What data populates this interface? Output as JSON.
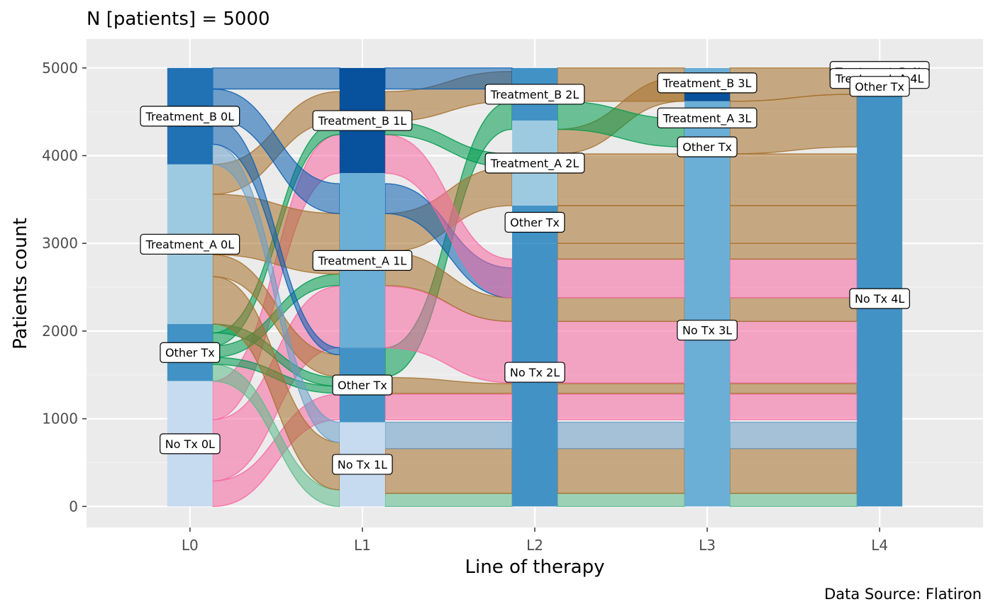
{
  "chart_data": {
    "type": "sankey",
    "title": "N [patients] = 5000",
    "caption": "Data Source: Flatiron",
    "xlabel": "Line of therapy",
    "ylabel": "Patients count",
    "x_categories": [
      "L0",
      "L1",
      "L2",
      "L3",
      "L4"
    ],
    "y_ticks": [
      0,
      1000,
      2000,
      3000,
      4000,
      5000
    ],
    "ylim": [
      -240,
      5330
    ],
    "grid": true,
    "colors": {
      "panel_bg": "#ebebeb",
      "grid_major": "#ffffff",
      "grid_minor": "#f4f4f4",
      "no_tx": "#c6dbef",
      "other_tx": "#4292c6",
      "treatment_a": "#9ecae1",
      "treatment_b": "#2171b5",
      "l1_treatment_a": "#6baed6",
      "l1_treatment_b": "#08519c",
      "l2_all": "#4292c6",
      "l3_all": "#6baed6",
      "l4_all": "#4292c6",
      "flow_no_tx": "#f768a1",
      "flow_other": "#009a4e",
      "flow_treatment_a": "#a6712b",
      "flow_treatment_b": "#0b5fb0",
      "flow_soft_green": "#5cbb8a",
      "flow_soft_blue": "#6a9ec7"
    },
    "nodes": [
      {
        "line": "L0",
        "name": "Treatment_B",
        "label": "Treatment_B 0L",
        "from": 3900,
        "to": 5000,
        "color_key": "treatment_b",
        "label_value": 4450
      },
      {
        "line": "L0",
        "name": "Treatment_A",
        "label": "Treatment_A 0L",
        "from": 2080,
        "to": 3900,
        "color_key": "treatment_a",
        "label_value": 2990
      },
      {
        "line": "L0",
        "name": "Other Tx",
        "label": "Other Tx",
        "from": 1430,
        "to": 2080,
        "color_key": "other_tx",
        "label_value": 1755
      },
      {
        "line": "L0",
        "name": "No Tx",
        "label": "No Tx 0L",
        "from": 0,
        "to": 1430,
        "color_key": "no_tx",
        "label_value": 715
      },
      {
        "line": "L1",
        "name": "Treatment_B",
        "label": "Treatment_B 1L",
        "from": 3800,
        "to": 5000,
        "color_key": "l1_treatment_b",
        "label_value": 4400
      },
      {
        "line": "L1",
        "name": "Treatment_A",
        "label": "Treatment_A 1L",
        "from": 1810,
        "to": 3800,
        "color_key": "l1_treatment_a",
        "label_value": 2805
      },
      {
        "line": "L1",
        "name": "Other Tx",
        "label": "Other Tx",
        "from": 960,
        "to": 1810,
        "color_key": "other_tx",
        "label_value": 1385
      },
      {
        "line": "L1",
        "name": "No Tx",
        "label": "No Tx 1L",
        "from": 0,
        "to": 960,
        "color_key": "no_tx",
        "label_value": 480
      },
      {
        "line": "L2",
        "name": "Treatment_B",
        "label": "Treatment_B 2L",
        "from": 4400,
        "to": 5000,
        "color_key": "l2_all",
        "label_value": 4700
      },
      {
        "line": "L2",
        "name": "Treatment_A",
        "label": "Treatment_A 2L",
        "from": 3430,
        "to": 4400,
        "color_key": "treatment_a",
        "label_value": 3915
      },
      {
        "line": "L2",
        "name": "Other Tx",
        "label": "Other Tx",
        "from": 3000,
        "to": 3430,
        "color_key": "l2_all",
        "label_value": 3240
      },
      {
        "line": "L2",
        "name": "No Tx",
        "label": "No Tx 2L",
        "from": 0,
        "to": 3000,
        "color_key": "l2_all",
        "label_value": 1530
      },
      {
        "line": "L3",
        "name": "Treatment_B",
        "label": "Treatment_B 3L",
        "from": 4870,
        "to": 5000,
        "color_key": "l3_all",
        "label_value": 4830
      },
      {
        "line": "L3",
        "name": "Treatment_A",
        "label": "Treatment_A 3L",
        "from": 4620,
        "to": 4870,
        "color_key": "l1_treatment_b",
        "label_value": 4430
      },
      {
        "line": "L3",
        "name": "Other Tx",
        "label": "Other Tx",
        "from": 4100,
        "to": 4620,
        "color_key": "l3_all",
        "label_value": 4100
      },
      {
        "line": "L3",
        "name": "No Tx",
        "label": "No Tx 3L",
        "from": 0,
        "to": 4100,
        "color_key": "l3_all",
        "label_value": 2010
      },
      {
        "line": "L4",
        "name": "Treatment_B",
        "label": "Treatment_B 4L",
        "from": 4960,
        "to": 5000,
        "color_key": "l4_all",
        "label_value": 4960
      },
      {
        "line": "L4",
        "name": "Treatment_A",
        "label": "Treatment_A 4L",
        "from": 4890,
        "to": 4960,
        "color_key": "l4_all",
        "label_value": 4880
      },
      {
        "line": "L4",
        "name": "Other Tx",
        "label": "Other Tx",
        "from": 4700,
        "to": 4890,
        "color_key": "l4_all",
        "label_value": 4790
      },
      {
        "line": "L4",
        "name": "No Tx",
        "label": "No Tx 4L",
        "from": 0,
        "to": 4700,
        "color_key": "l4_all",
        "label_value": 2370
      }
    ],
    "flows": [
      {
        "from_line": "L0",
        "y0": 0,
        "y1": 290,
        "to_line": "L1",
        "t0": 990,
        "t1": 1280,
        "color_key": "flow_no_tx"
      },
      {
        "from_line": "L0",
        "y0": 290,
        "y1": 990,
        "to_line": "L1",
        "t0": 1810,
        "t1": 2510,
        "color_key": "flow_no_tx"
      },
      {
        "from_line": "L0",
        "y0": 990,
        "y1": 1430,
        "to_line": "L1",
        "t0": 3800,
        "t1": 4240,
        "color_key": "flow_no_tx"
      },
      {
        "from_line": "L0",
        "y0": 1430,
        "y1": 1620,
        "to_line": "L1",
        "t0": 0,
        "t1": 190,
        "color_key": "flow_soft_green"
      },
      {
        "from_line": "L0",
        "y0": 1620,
        "y1": 1700,
        "to_line": "L1",
        "t0": 1290,
        "t1": 1370,
        "color_key": "flow_other"
      },
      {
        "from_line": "L0",
        "y0": 1700,
        "y1": 1830,
        "to_line": "L1",
        "t0": 2520,
        "t1": 2650,
        "color_key": "flow_other"
      },
      {
        "from_line": "L0",
        "y0": 1830,
        "y1": 1980,
        "to_line": "L1",
        "t0": 4240,
        "t1": 4390,
        "color_key": "flow_other"
      },
      {
        "from_line": "L0",
        "y0": 1980,
        "y1": 2080,
        "to_line": "L1",
        "t0": 1370,
        "t1": 1470,
        "color_key": "flow_other"
      },
      {
        "from_line": "L0",
        "y0": 2080,
        "y1": 2620,
        "to_line": "L1",
        "t0": 190,
        "t1": 730,
        "color_key": "flow_treatment_a"
      },
      {
        "from_line": "L0",
        "y0": 2620,
        "y1": 2870,
        "to_line": "L1",
        "t0": 1480,
        "t1": 1730,
        "color_key": "flow_treatment_a"
      },
      {
        "from_line": "L0",
        "y0": 2870,
        "y1": 3560,
        "to_line": "L1",
        "t0": 2650,
        "t1": 3340,
        "color_key": "flow_treatment_a"
      },
      {
        "from_line": "L0",
        "y0": 3560,
        "y1": 3900,
        "to_line": "L1",
        "t0": 4390,
        "t1": 4730,
        "color_key": "flow_treatment_a"
      },
      {
        "from_line": "L0",
        "y0": 3900,
        "y1": 4130,
        "to_line": "L1",
        "t0": 730,
        "t1": 960,
        "color_key": "flow_soft_blue"
      },
      {
        "from_line": "L0",
        "y0": 4130,
        "y1": 4420,
        "to_line": "L1",
        "t0": 1730,
        "t1": 1810,
        "color_key": "flow_treatment_b"
      },
      {
        "from_line": "L0",
        "y0": 4420,
        "y1": 4760,
        "to_line": "L1",
        "t0": 3340,
        "t1": 3680,
        "color_key": "flow_treatment_b"
      },
      {
        "from_line": "L0",
        "y0": 4760,
        "y1": 5000,
        "to_line": "L1",
        "t0": 4760,
        "t1": 5000,
        "color_key": "flow_treatment_b"
      },
      {
        "from_line": "L1",
        "y0": 0,
        "y1": 150,
        "to_line": "L2",
        "t0": 0,
        "t1": 150,
        "color_key": "flow_soft_green"
      },
      {
        "from_line": "L1",
        "y0": 150,
        "y1": 660,
        "to_line": "L2",
        "t0": 150,
        "t1": 660,
        "color_key": "flow_treatment_a"
      },
      {
        "from_line": "L1",
        "y0": 660,
        "y1": 960,
        "to_line": "L2",
        "t0": 660,
        "t1": 960,
        "color_key": "flow_soft_blue"
      },
      {
        "from_line": "L1",
        "y0": 990,
        "y1": 1280,
        "to_line": "L2",
        "t0": 990,
        "t1": 1280,
        "color_key": "flow_no_tx"
      },
      {
        "from_line": "L1",
        "y0": 1290,
        "y1": 1470,
        "to_line": "L2",
        "t0": 1290,
        "t1": 1400,
        "color_key": "flow_treatment_a"
      },
      {
        "from_line": "L1",
        "y0": 1480,
        "y1": 1810,
        "to_line": "L2",
        "t0": 4300,
        "t1": 4620,
        "color_key": "flow_other"
      },
      {
        "from_line": "L1",
        "y0": 1810,
        "y1": 2510,
        "to_line": "L2",
        "t0": 1410,
        "t1": 2110,
        "color_key": "flow_no_tx"
      },
      {
        "from_line": "L1",
        "y0": 2520,
        "y1": 2900,
        "to_line": "L2",
        "t0": 2110,
        "t1": 2380,
        "color_key": "flow_treatment_a"
      },
      {
        "from_line": "L1",
        "y0": 2900,
        "y1": 3340,
        "to_line": "L2",
        "t0": 3430,
        "t1": 3870,
        "color_key": "flow_treatment_a"
      },
      {
        "from_line": "L1",
        "y0": 3340,
        "y1": 3680,
        "to_line": "L2",
        "t0": 2380,
        "t1": 2720,
        "color_key": "flow_treatment_b"
      },
      {
        "from_line": "L1",
        "y0": 3800,
        "y1": 4240,
        "to_line": "L2",
        "t0": 2380,
        "t1": 2820,
        "color_key": "flow_no_tx"
      },
      {
        "from_line": "L1",
        "y0": 4240,
        "y1": 4390,
        "to_line": "L2",
        "t0": 3870,
        "t1": 4020,
        "color_key": "flow_other"
      },
      {
        "from_line": "L1",
        "y0": 4390,
        "y1": 4730,
        "to_line": "L2",
        "t0": 4620,
        "t1": 4960,
        "color_key": "flow_treatment_a"
      },
      {
        "from_line": "L1",
        "y0": 4760,
        "y1": 5000,
        "to_line": "L2",
        "t0": 4760,
        "t1": 5000,
        "color_key": "flow_treatment_b"
      },
      {
        "from_line": "L2",
        "y0": 0,
        "y1": 150,
        "to_line": "L3",
        "t0": 0,
        "t1": 150,
        "color_key": "flow_soft_green"
      },
      {
        "from_line": "L2",
        "y0": 150,
        "y1": 660,
        "to_line": "L3",
        "t0": 150,
        "t1": 660,
        "color_key": "flow_treatment_a"
      },
      {
        "from_line": "L2",
        "y0": 660,
        "y1": 960,
        "to_line": "L3",
        "t0": 660,
        "t1": 960,
        "color_key": "flow_soft_blue"
      },
      {
        "from_line": "L2",
        "y0": 990,
        "y1": 1280,
        "to_line": "L3",
        "t0": 990,
        "t1": 1280,
        "color_key": "flow_no_tx"
      },
      {
        "from_line": "L2",
        "y0": 1290,
        "y1": 1400,
        "to_line": "L3",
        "t0": 1290,
        "t1": 1400,
        "color_key": "flow_treatment_a"
      },
      {
        "from_line": "L2",
        "y0": 1410,
        "y1": 2110,
        "to_line": "L3",
        "t0": 1410,
        "t1": 2110,
        "color_key": "flow_no_tx"
      },
      {
        "from_line": "L2",
        "y0": 2110,
        "y1": 2380,
        "to_line": "L3",
        "t0": 2110,
        "t1": 2380,
        "color_key": "flow_treatment_a"
      },
      {
        "from_line": "L2",
        "y0": 2380,
        "y1": 2820,
        "to_line": "L3",
        "t0": 2380,
        "t1": 2820,
        "color_key": "flow_no_tx"
      },
      {
        "from_line": "L2",
        "y0": 2820,
        "y1": 3000,
        "to_line": "L3",
        "t0": 2820,
        "t1": 3000,
        "color_key": "flow_treatment_a"
      },
      {
        "from_line": "L2",
        "y0": 3000,
        "y1": 3430,
        "to_line": "L3",
        "t0": 3000,
        "t1": 3430,
        "color_key": "flow_treatment_a"
      },
      {
        "from_line": "L2",
        "y0": 3430,
        "y1": 4020,
        "to_line": "L3",
        "t0": 3430,
        "t1": 4020,
        "color_key": "flow_treatment_a"
      },
      {
        "from_line": "L2",
        "y0": 4020,
        "y1": 4300,
        "to_line": "L3",
        "t0": 4620,
        "t1": 4900,
        "color_key": "flow_treatment_a"
      },
      {
        "from_line": "L2",
        "y0": 4300,
        "y1": 4620,
        "to_line": "L3",
        "t0": 4100,
        "t1": 4420,
        "color_key": "flow_other"
      },
      {
        "from_line": "L2",
        "y0": 4620,
        "y1": 5000,
        "to_line": "L3",
        "t0": 4620,
        "t1": 5000,
        "color_key": "flow_treatment_a"
      },
      {
        "from_line": "L3",
        "y0": 0,
        "y1": 150,
        "to_line": "L4",
        "t0": 0,
        "t1": 150,
        "color_key": "flow_soft_green"
      },
      {
        "from_line": "L3",
        "y0": 150,
        "y1": 660,
        "to_line": "L4",
        "t0": 150,
        "t1": 660,
        "color_key": "flow_treatment_a"
      },
      {
        "from_line": "L3",
        "y0": 660,
        "y1": 960,
        "to_line": "L4",
        "t0": 660,
        "t1": 960,
        "color_key": "flow_soft_blue"
      },
      {
        "from_line": "L3",
        "y0": 990,
        "y1": 1280,
        "to_line": "L4",
        "t0": 990,
        "t1": 1280,
        "color_key": "flow_no_tx"
      },
      {
        "from_line": "L3",
        "y0": 1290,
        "y1": 1400,
        "to_line": "L4",
        "t0": 1290,
        "t1": 1400,
        "color_key": "flow_treatment_a"
      },
      {
        "from_line": "L3",
        "y0": 1410,
        "y1": 2110,
        "to_line": "L4",
        "t0": 1410,
        "t1": 2110,
        "color_key": "flow_no_tx"
      },
      {
        "from_line": "L3",
        "y0": 2110,
        "y1": 2380,
        "to_line": "L4",
        "t0": 2110,
        "t1": 2380,
        "color_key": "flow_treatment_a"
      },
      {
        "from_line": "L3",
        "y0": 2380,
        "y1": 2820,
        "to_line": "L4",
        "t0": 2380,
        "t1": 2820,
        "color_key": "flow_no_tx"
      },
      {
        "from_line": "L3",
        "y0": 2820,
        "y1": 3000,
        "to_line": "L4",
        "t0": 2820,
        "t1": 3000,
        "color_key": "flow_treatment_a"
      },
      {
        "from_line": "L3",
        "y0": 3000,
        "y1": 3430,
        "to_line": "L4",
        "t0": 3000,
        "t1": 3430,
        "color_key": "flow_treatment_a"
      },
      {
        "from_line": "L3",
        "y0": 3430,
        "y1": 4020,
        "to_line": "L4",
        "t0": 3430,
        "t1": 4020,
        "color_key": "flow_treatment_a"
      },
      {
        "from_line": "L3",
        "y0": 4020,
        "y1": 4620,
        "to_line": "L4",
        "t0": 4100,
        "t1": 4700,
        "color_key": "flow_treatment_a"
      },
      {
        "from_line": "L3",
        "y0": 4620,
        "y1": 5000,
        "to_line": "L4",
        "t0": 4700,
        "t1": 5000,
        "color_key": "flow_treatment_a"
      }
    ]
  }
}
